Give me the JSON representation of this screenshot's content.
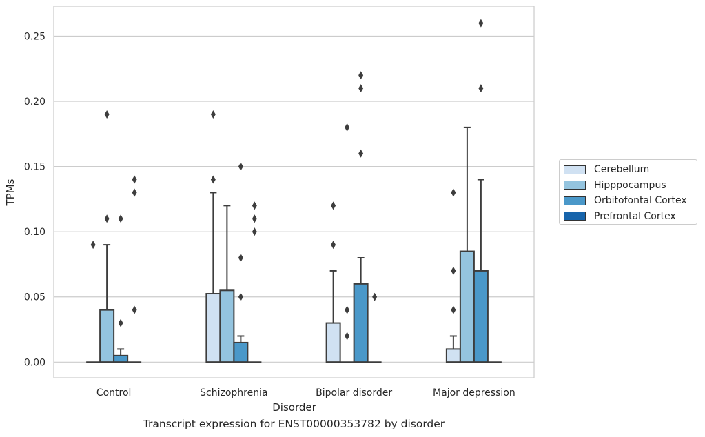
{
  "chart_data": {
    "type": "box",
    "title": "",
    "caption": "Transcript expression for ENST00000353782 by disorder",
    "xlabel": "Disorder",
    "ylabel": "TPMs",
    "ylim": [
      -0.012,
      0.273
    ],
    "yticks": [
      "0.00",
      "0.05",
      "0.10",
      "0.15",
      "0.20",
      "0.25"
    ],
    "ytick_values": [
      0,
      0.05,
      0.1,
      0.15,
      0.2,
      0.25
    ],
    "grid": "horizontal",
    "legend_position": "right",
    "categories": [
      "Control",
      "Schizophrenia",
      "Bipolar disorder",
      "Major depression"
    ],
    "series": [
      {
        "name": "Cerebellum",
        "color": "#d0e1f2",
        "boxes": [
          {
            "q1": 0,
            "median": 0,
            "q3": 0,
            "whisker_low": 0,
            "whisker_high": 0,
            "outliers": [
              0.09
            ]
          },
          {
            "q1": 0,
            "median": 0,
            "q3": 0.0525,
            "whisker_low": 0,
            "whisker_high": 0.13,
            "outliers": [
              0.14,
              0.19
            ]
          },
          {
            "q1": 0,
            "median": 0,
            "q3": 0.03,
            "whisker_low": 0,
            "whisker_high": 0.07,
            "outliers": [
              0.09,
              0.12
            ]
          },
          {
            "q1": 0,
            "median": 0,
            "q3": 0.01,
            "whisker_low": 0,
            "whisker_high": 0.02,
            "outliers": [
              0.04,
              0.07,
              0.13
            ]
          }
        ]
      },
      {
        "name": "Hipppocampus",
        "color": "#94c4df",
        "boxes": [
          {
            "q1": 0,
            "median": 0,
            "q3": 0.04,
            "whisker_low": 0,
            "whisker_high": 0.09,
            "outliers": [
              0.11,
              0.19
            ]
          },
          {
            "q1": 0,
            "median": 0,
            "q3": 0.055,
            "whisker_low": 0,
            "whisker_high": 0.12,
            "outliers": []
          },
          {
            "q1": 0,
            "median": 0,
            "q3": 0,
            "whisker_low": 0,
            "whisker_high": 0,
            "outliers": [
              0.02,
              0.04,
              0.18
            ]
          },
          {
            "q1": 0,
            "median": 0,
            "q3": 0.085,
            "whisker_low": 0,
            "whisker_high": 0.18,
            "outliers": []
          }
        ]
      },
      {
        "name": "Orbitofontal Cortex",
        "color": "#4a98c9",
        "boxes": [
          {
            "q1": 0,
            "median": 0,
            "q3": 0.005,
            "whisker_low": 0,
            "whisker_high": 0.01,
            "outliers": [
              0.03,
              0.11
            ]
          },
          {
            "q1": 0,
            "median": 0,
            "q3": 0.015,
            "whisker_low": 0,
            "whisker_high": 0.02,
            "outliers": [
              0.05,
              0.08,
              0.15
            ]
          },
          {
            "q1": 0,
            "median": 0,
            "q3": 0.06,
            "whisker_low": 0,
            "whisker_high": 0.08,
            "outliers": [
              0.16,
              0.21,
              0.22
            ]
          },
          {
            "q1": 0,
            "median": 0,
            "q3": 0.07,
            "whisker_low": 0,
            "whisker_high": 0.14,
            "outliers": [
              0.21,
              0.26
            ]
          }
        ]
      },
      {
        "name": "Prefrontal Cortex",
        "color": "#1764ab",
        "boxes": [
          {
            "q1": 0,
            "median": 0,
            "q3": 0,
            "whisker_low": 0,
            "whisker_high": 0,
            "outliers": [
              0.04,
              0.13,
              0.14
            ]
          },
          {
            "q1": 0,
            "median": 0,
            "q3": 0,
            "whisker_low": 0,
            "whisker_high": 0,
            "outliers": [
              0.1,
              0.11,
              0.12
            ]
          },
          {
            "q1": 0,
            "median": 0,
            "q3": 0,
            "whisker_low": 0,
            "whisker_high": 0,
            "outliers": [
              0.05
            ]
          },
          {
            "q1": 0,
            "median": 0,
            "q3": 0,
            "whisker_low": 0,
            "whisker_high": 0,
            "outliers": []
          }
        ]
      }
    ]
  }
}
